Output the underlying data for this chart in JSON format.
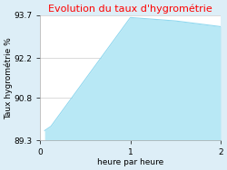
{
  "title": "Evolution du taux d'hygrométrie",
  "xlabel": "heure par heure",
  "ylabel": "Taux hygrométrie %",
  "x": [
    0.05,
    0.12,
    1.0,
    1.5,
    2.0
  ],
  "y": [
    89.65,
    89.8,
    93.62,
    93.5,
    93.3
  ],
  "ylim": [
    89.3,
    93.7
  ],
  "xlim": [
    0,
    2
  ],
  "yticks": [
    89.3,
    90.8,
    92.2,
    93.7
  ],
  "xticks": [
    0,
    1,
    2
  ],
  "line_color": "#90d8ef",
  "fill_color": "#b8e8f5",
  "plot_bg_color": "#ffffff",
  "fig_bg_color": "#ddeef7",
  "title_color": "#ff0000",
  "title_fontsize": 8,
  "label_fontsize": 6.5,
  "tick_fontsize": 6.5
}
